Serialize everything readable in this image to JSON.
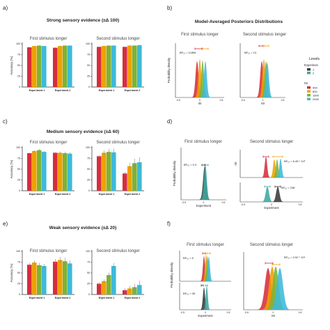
{
  "figure": {
    "panel_letters": [
      "a)",
      "b)",
      "c)",
      "d)",
      "e)",
      "f)"
    ],
    "row_titles": [
      "Strong sensory evidence (±Δ 100)",
      "Medium sensory evidence (±Δ 60)",
      "Weak sensory evidence (±Δ 20)"
    ],
    "posterior_title": "Model-Averaged Posteriors Distributions",
    "subtitles": {
      "first": "First stimulus longer",
      "second": "Second stimulus longer"
    },
    "accuracy_ylabel": "Accuracy (%)",
    "density_ylabel": "Probability density",
    "experiment_ticks": [
      "Experiment 1",
      "Experiment 2"
    ],
    "isi_xlabel": "ISI",
    "experiment_xlabel": "Experiment",
    "legend": {
      "title": "Levels",
      "experiment_header": "Experimen",
      "experiment_levels": [
        {
          "label": "1",
          "color": "#3a3a3a"
        },
        {
          "label": "2",
          "color": "#3aa7a0"
        }
      ],
      "isi_header": "ISI",
      "isi_levels": [
        {
          "label": "400",
          "color": "#d62d3c"
        },
        {
          "label": "800",
          "color": "#f0a000"
        },
        {
          "label": "1600",
          "color": "#7ab33a"
        },
        {
          "label": "2000",
          "color": "#3dbad9"
        }
      ]
    },
    "bf_labels": {
      "b_first": "BF₁₀ = 11895",
      "b_second": "BF₁₀ = 13",
      "d_first": "BF₁₀ = 0.3",
      "d_second_top": "BF₁₀ = 6.45 * 10⁶",
      "d_second_bottom": "BF₁₀ = 238",
      "f_first_top": "BF₁₀ = 6",
      "f_first_bottom": "BF₁₀ = 39",
      "f_second": "BF₁₀ = 0.52 * 10⁴"
    },
    "density_xticks": {
      "wide": [
        "-0.6",
        "0",
        "0.6"
      ],
      "narrow": [
        "-0.5",
        "0",
        "0.5"
      ]
    }
  },
  "chart_data": [
    {
      "panel": "a) First stimulus longer",
      "type": "bar",
      "categories": [
        "Experiment 1",
        "Experiment 2"
      ],
      "series": [
        {
          "name": "400",
          "values": [
            92,
            91
          ]
        },
        {
          "name": "800",
          "values": [
            95,
            95
          ]
        },
        {
          "name": "1600",
          "values": [
            96,
            96
          ]
        },
        {
          "name": "2000",
          "values": [
            95,
            96
          ]
        }
      ],
      "ylabel": "Accuracy (%)",
      "ylim": [
        0,
        100
      ]
    },
    {
      "panel": "a) Second stimulus longer",
      "type": "bar",
      "categories": [
        "Experiment 1",
        "Experiment 2"
      ],
      "series": [
        {
          "name": "400",
          "values": [
            93,
            93
          ]
        },
        {
          "name": "800",
          "values": [
            95,
            96
          ]
        },
        {
          "name": "1600",
          "values": [
            96,
            96
          ]
        },
        {
          "name": "2000",
          "values": [
            96,
            97
          ]
        }
      ],
      "ylabel": "Accuracy (%)",
      "ylim": [
        0,
        100
      ]
    },
    {
      "panel": "c) First stimulus longer",
      "type": "bar",
      "categories": [
        "Experiment 1",
        "Experiment 2"
      ],
      "series": [
        {
          "name": "400",
          "values": [
            87,
            88
          ]
        },
        {
          "name": "800",
          "values": [
            92,
            88
          ]
        },
        {
          "name": "1600",
          "values": [
            94,
            87
          ]
        },
        {
          "name": "2000",
          "values": [
            90,
            86
          ]
        }
      ],
      "ylabel": "Accuracy (%)",
      "ylim": [
        0,
        100
      ]
    },
    {
      "panel": "c) Second stimulus longer",
      "type": "bar",
      "categories": [
        "Experiment 1",
        "Experiment 2"
      ],
      "series": [
        {
          "name": "400",
          "values": [
            80,
            40
          ]
        },
        {
          "name": "800",
          "values": [
            88,
            57
          ]
        },
        {
          "name": "1600",
          "values": [
            90,
            64
          ]
        },
        {
          "name": "2000",
          "values": [
            89,
            66
          ]
        }
      ],
      "ylabel": "Accuracy (%)",
      "ylim": [
        0,
        100
      ]
    },
    {
      "panel": "e) First stimulus longer",
      "type": "bar",
      "categories": [
        "Experiment 1",
        "Experiment 2"
      ],
      "series": [
        {
          "name": "400",
          "values": [
            69,
            76
          ]
        },
        {
          "name": "800",
          "values": [
            74,
            80
          ]
        },
        {
          "name": "1600",
          "values": [
            68,
            77
          ]
        },
        {
          "name": "2000",
          "values": [
            66,
            72
          ]
        }
      ],
      "ylabel": "Accuracy (%)",
      "ylim": [
        0,
        100
      ]
    },
    {
      "panel": "e) Second stimulus longer",
      "type": "bar",
      "categories": [
        "Experiment 1",
        "Experiment 2"
      ],
      "series": [
        {
          "name": "400",
          "values": [
            25,
            10
          ]
        },
        {
          "name": "800",
          "values": [
            31,
            14
          ]
        },
        {
          "name": "1600",
          "values": [
            45,
            17
          ]
        },
        {
          "name": "2000",
          "values": [
            66,
            22
          ]
        }
      ],
      "ylabel": "Accuracy (%)",
      "ylim": [
        0,
        100
      ]
    }
  ]
}
